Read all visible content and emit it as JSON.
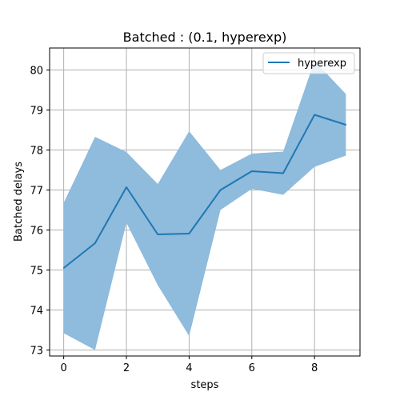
{
  "chart_data": {
    "type": "line",
    "title": "Batched : (0.1, hyperexp)",
    "xlabel": "steps",
    "ylabel": "Batched delays",
    "x": [
      0,
      1,
      2,
      3,
      4,
      5,
      6,
      7,
      8,
      9
    ],
    "xlim": [
      -0.45,
      9.45
    ],
    "ylim": [
      72.85,
      80.55
    ],
    "xticks": [
      0,
      2,
      4,
      6,
      8
    ],
    "yticks": [
      73,
      74,
      75,
      76,
      77,
      78,
      79,
      80
    ],
    "grid": true,
    "legend_position": "top-right",
    "series": [
      {
        "name": "hyperexp",
        "color": "#1f77b4",
        "values": [
          75.05,
          75.67,
          77.07,
          75.89,
          75.91,
          77.0,
          77.47,
          77.42,
          78.88,
          78.63
        ],
        "band_upper": [
          76.68,
          78.33,
          77.95,
          77.15,
          78.47,
          77.5,
          77.91,
          77.96,
          80.23,
          79.4
        ],
        "band_lower": [
          73.42,
          73.0,
          76.18,
          74.62,
          73.35,
          76.5,
          77.03,
          76.88,
          77.58,
          77.86
        ],
        "band_color": "#8fbbdc"
      }
    ]
  }
}
